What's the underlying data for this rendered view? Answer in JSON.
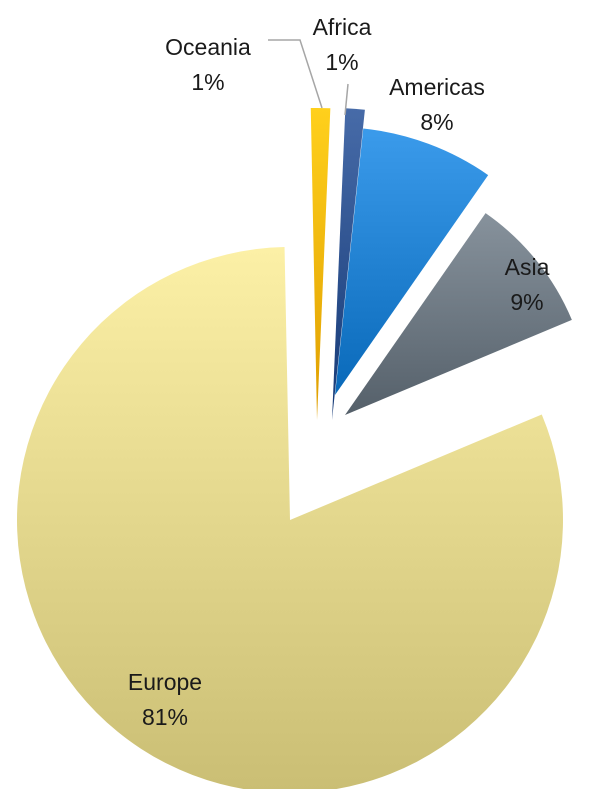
{
  "chart_data": {
    "type": "pie",
    "title": "",
    "slices": [
      {
        "label": "Europe",
        "value": 81,
        "value_label": "81%",
        "color": "#e0d48a"
      },
      {
        "label": "Oceania",
        "value": 1,
        "value_label": "1%",
        "color": "#f5b400"
      },
      {
        "label": "Africa",
        "value": 1,
        "value_label": "1%",
        "color": "#2b4f8c"
      },
      {
        "label": "Americas",
        "value": 8,
        "value_label": "8%",
        "color": "#1f7fcf"
      },
      {
        "label": "Asia",
        "value": 9,
        "value_label": "9%",
        "color": "#6b7680"
      }
    ],
    "legend": "none",
    "exploded": true
  }
}
